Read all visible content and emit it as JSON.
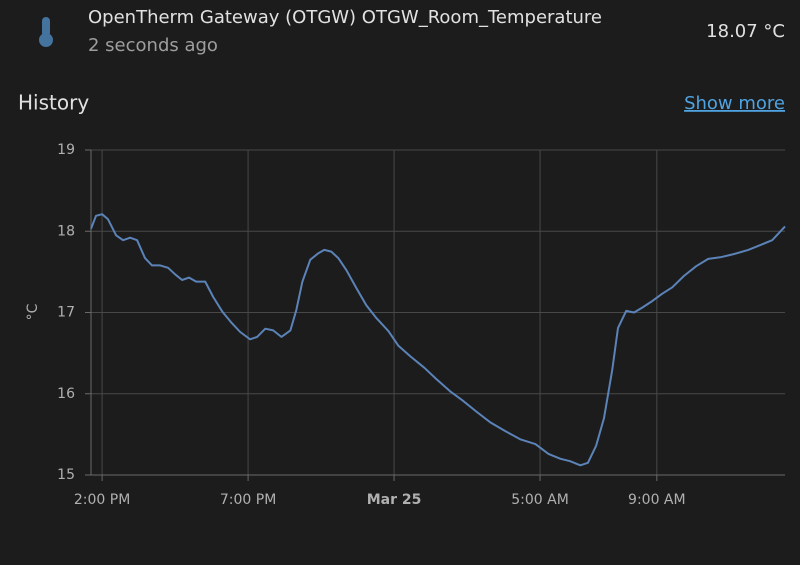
{
  "header": {
    "title": "OpenTherm Gateway (OTGW) OTGW_Room_Temperature",
    "subtitle": "2 seconds ago",
    "state": "18.07 °C"
  },
  "section": {
    "title": "History",
    "link": "Show more"
  },
  "chart_data": {
    "type": "line",
    "y_label": "°C",
    "color": "#5b83b8",
    "grid": true,
    "x": [
      13.62,
      13.79,
      14.0,
      14.2,
      14.48,
      14.72,
      14.96,
      15.2,
      15.47,
      15.71,
      15.99,
      16.26,
      16.5,
      16.74,
      16.98,
      17.22,
      17.53,
      17.81,
      18.12,
      18.42,
      18.73,
      19.07,
      19.31,
      19.59,
      19.86,
      20.14,
      20.45,
      20.65,
      20.86,
      21.13,
      21.41,
      21.61,
      21.85,
      22.09,
      22.37,
      22.71,
      23.05,
      23.4,
      23.81,
      24.15,
      24.56,
      25.04,
      25.45,
      25.92,
      26.34,
      26.82,
      27.29,
      27.81,
      28.32,
      28.84,
      29.29,
      29.7,
      30.03,
      30.38,
      30.64,
      30.92,
      31.19,
      31.47,
      31.67,
      31.95,
      32.22,
      32.5,
      32.84,
      33.18,
      33.53,
      33.93,
      34.35,
      34.76,
      35.17,
      35.65,
      36.13,
      36.61,
      36.95,
      37.16,
      37.39
    ],
    "values": [
      18.03,
      18.19,
      18.21,
      18.15,
      17.95,
      17.89,
      17.92,
      17.89,
      17.67,
      17.58,
      17.58,
      17.55,
      17.47,
      17.4,
      17.43,
      17.38,
      17.38,
      17.19,
      17.01,
      16.88,
      16.76,
      16.67,
      16.7,
      16.8,
      16.78,
      16.7,
      16.78,
      17.03,
      17.38,
      17.65,
      17.73,
      17.77,
      17.75,
      17.67,
      17.52,
      17.3,
      17.09,
      16.93,
      16.77,
      16.59,
      16.46,
      16.32,
      16.18,
      16.03,
      15.92,
      15.78,
      15.65,
      15.54,
      15.44,
      15.38,
      15.26,
      15.2,
      15.17,
      15.12,
      15.15,
      15.36,
      15.7,
      16.29,
      16.81,
      17.02,
      17.0,
      17.06,
      17.14,
      17.23,
      17.31,
      17.45,
      17.57,
      17.66,
      17.68,
      17.72,
      17.77,
      17.84,
      17.89,
      17.97,
      18.06
    ],
    "xlim": [
      13.62,
      37.39
    ],
    "xticks": [
      {
        "value": 14,
        "label": "2:00 PM"
      },
      {
        "value": 19,
        "label": "7:00 PM"
      },
      {
        "value": 24,
        "label": "Mar 25"
      },
      {
        "value": 29,
        "label": "5:00 AM"
      },
      {
        "value": 33,
        "label": "9:00 AM"
      }
    ],
    "ylim": [
      15,
      19
    ],
    "yticks": [
      15,
      16,
      17,
      18,
      19
    ]
  }
}
